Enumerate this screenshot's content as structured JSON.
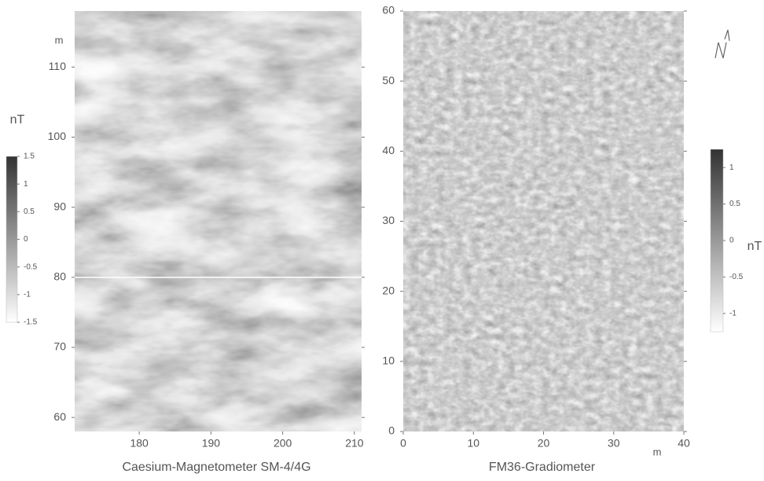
{
  "chart_data": [
    {
      "type": "heatmap",
      "title": "Caesium-Magnetometer SM-4/4G",
      "ylabel": "m",
      "xlim": [
        171,
        211
      ],
      "ylim": [
        58,
        118
      ],
      "xticks": [
        180,
        190,
        200,
        210
      ],
      "yticks": [
        60,
        70,
        80,
        90,
        100,
        110
      ],
      "colorbar": {
        "label": "nT",
        "lim": [
          -1.5,
          1.5
        ],
        "ticks": [
          1.5,
          1,
          0.5,
          0,
          -0.5,
          -1,
          -1.5
        ],
        "colors": [
          "#ffffff",
          "#333333"
        ]
      }
    },
    {
      "type": "heatmap",
      "title": "FM36-Gradiometer",
      "xlabel": "m",
      "xlim": [
        0,
        40
      ],
      "ylim": [
        0,
        60
      ],
      "xticks": [
        0,
        10,
        20,
        30,
        40
      ],
      "yticks": [
        0,
        10,
        20,
        30,
        40,
        50,
        60
      ],
      "colorbar": {
        "label": "nT",
        "lim": [
          -1.25,
          1.25
        ],
        "ticks": [
          1,
          0.5,
          0,
          -0.5,
          -1
        ],
        "colors": [
          "#ffffff",
          "#333333"
        ]
      }
    }
  ]
}
